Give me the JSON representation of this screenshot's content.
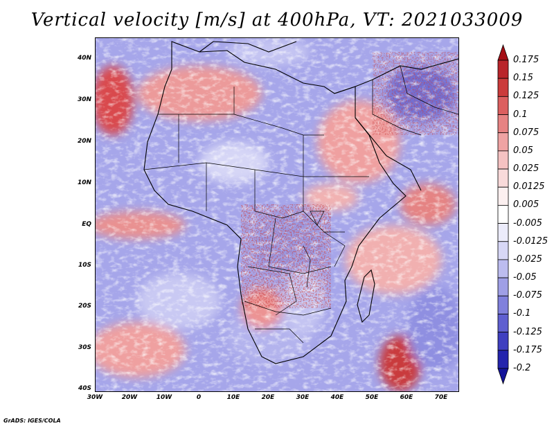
{
  "title": "Vertical velocity [m/s] at 400hPa, VT: 2021033009",
  "footer": "GrADS: IGES/COLA",
  "map": {
    "variable": "Vertical velocity",
    "units": "m/s",
    "level": "400hPa",
    "valid_time": "2021033009",
    "lon_range": [
      -30,
      75
    ],
    "lat_range": [
      -40,
      45
    ],
    "lat_labels": [
      "40N",
      "30N",
      "20N",
      "10N",
      "EQ",
      "10S",
      "20S",
      "30S",
      "40S"
    ],
    "lon_labels": [
      "30W",
      "20W",
      "10W",
      "0",
      "10E",
      "20E",
      "30E",
      "40E",
      "50E",
      "60E",
      "70E"
    ]
  },
  "colorbar": {
    "labels": [
      "0.175",
      "0.15",
      "0.125",
      "0.1",
      "0.075",
      "0.05",
      "0.025",
      "0.0125",
      "0.005",
      "-0.005",
      "-0.0125",
      "-0.025",
      "-0.05",
      "-0.075",
      "-0.1",
      "-0.125",
      "-0.175",
      "-0.2"
    ],
    "colors": [
      "#a50f15",
      "#b9252b",
      "#cb3b3b",
      "#dc5f5f",
      "#e78383",
      "#efa3a3",
      "#f5c2c2",
      "#f9dada",
      "#fcf0f0",
      "#ffffff",
      "#ececfb",
      "#d7d7f6",
      "#bcbcef",
      "#9f9fe6",
      "#8080dc",
      "#5f5fd0",
      "#3f3fc0",
      "#2424ad",
      "#14149a"
    ]
  }
}
